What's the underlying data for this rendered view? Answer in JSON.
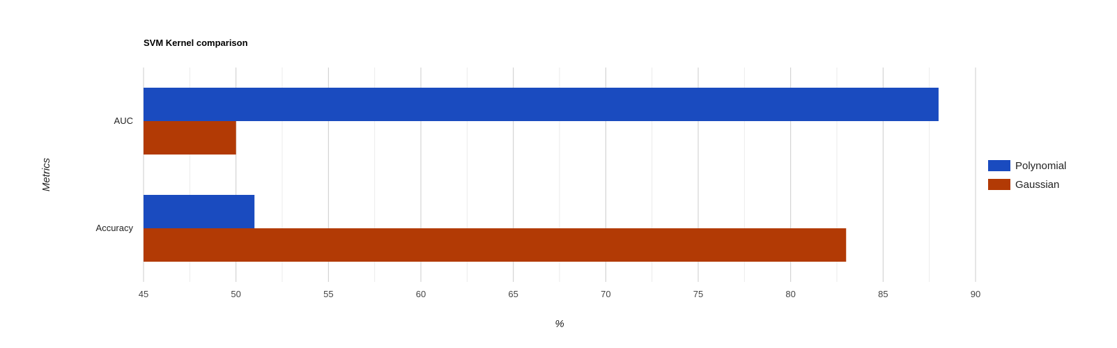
{
  "chart_data": {
    "type": "bar",
    "orientation": "horizontal",
    "title": "SVM Kernel comparison",
    "xlabel": "%",
    "ylabel": "Metrics",
    "categories": [
      "AUC",
      "Accuracy"
    ],
    "series": [
      {
        "name": "Polynomial",
        "color": "#1a4bbf",
        "values": [
          88,
          51
        ]
      },
      {
        "name": "Gaussian",
        "color": "#b23a05",
        "values": [
          50,
          83
        ]
      }
    ],
    "xlim": [
      45,
      90
    ],
    "xticks": [
      "45",
      "50",
      "55",
      "60",
      "65",
      "70",
      "75",
      "80",
      "85",
      "90"
    ],
    "grid": true,
    "legend_position": "right"
  }
}
